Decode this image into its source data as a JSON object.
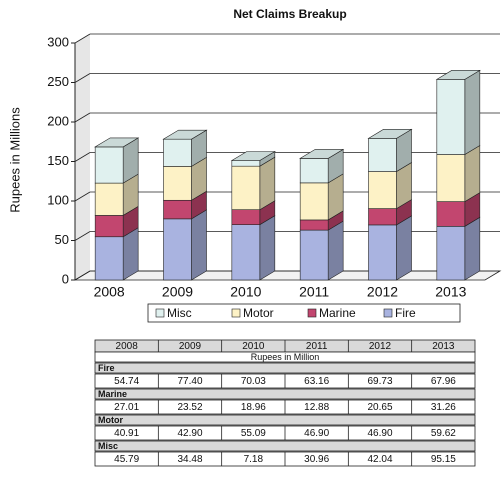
{
  "chart_data": {
    "type": "bar",
    "stacked": true,
    "title": "Net Claims Breakup",
    "y_label": "Rupees in Millions",
    "table_caption": "Rupees in Million",
    "categories": [
      "2008",
      "2009",
      "2010",
      "2011",
      "2012",
      "2013"
    ],
    "series": [
      {
        "name": "Fire",
        "color": "#a9b3e0",
        "values": [
          54.74,
          77.4,
          70.03,
          63.16,
          69.73,
          67.96
        ],
        "value_labels": [
          "54.74",
          "77.40",
          "70.03",
          "63.16",
          "69.73",
          "67.96"
        ]
      },
      {
        "name": "Marine",
        "color": "#c2466f",
        "values": [
          27.01,
          23.52,
          18.96,
          12.88,
          20.65,
          31.26
        ],
        "value_labels": [
          "27.01",
          "23.52",
          "18.96",
          "12.88",
          "20.65",
          "31.26"
        ]
      },
      {
        "name": "Motor",
        "color": "#fdf2c6",
        "values": [
          40.91,
          42.9,
          55.09,
          46.9,
          46.9,
          59.62
        ],
        "value_labels": [
          "40.91",
          "42.90",
          "55.09",
          "46.90",
          "46.90",
          "59.62"
        ]
      },
      {
        "name": "Misc",
        "color": "#e0f1ef",
        "values": [
          45.79,
          34.48,
          7.18,
          30.96,
          42.04,
          95.15
        ],
        "value_labels": [
          "45.79",
          "34.48",
          "7.18",
          "30.96",
          "42.04",
          "95.15"
        ]
      }
    ],
    "ylim": [
      0,
      300
    ],
    "yticks": [
      0,
      50,
      100,
      150,
      200,
      250,
      300
    ],
    "grid": true,
    "legend": "bottom"
  }
}
